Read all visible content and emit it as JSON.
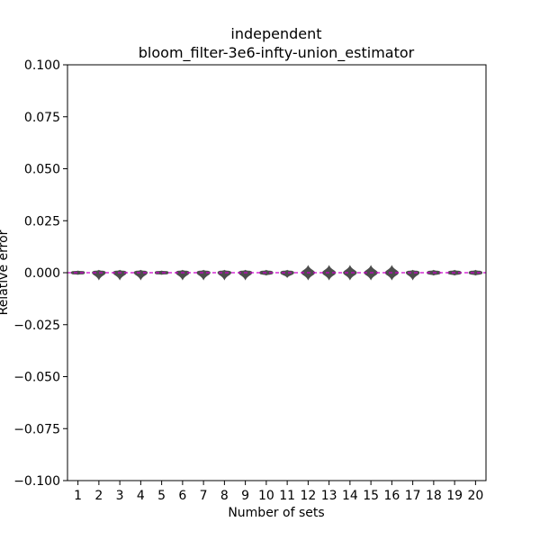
{
  "chart_data": {
    "type": "violin",
    "title_lines": [
      "independent",
      "bloom_filter-3e6-infty-union_estimator"
    ],
    "xlabel": "Number of sets",
    "ylabel": "Relative error",
    "categories": [
      "1",
      "2",
      "3",
      "4",
      "5",
      "6",
      "7",
      "8",
      "9",
      "10",
      "11",
      "12",
      "13",
      "14",
      "15",
      "16",
      "17",
      "18",
      "19",
      "20"
    ],
    "median": [
      0,
      0,
      0,
      0,
      0,
      0,
      0,
      0,
      0,
      0,
      0,
      0,
      0,
      0,
      0,
      0,
      0,
      0,
      0,
      0
    ],
    "min": [
      0,
      -0.003,
      -0.003,
      -0.003,
      0,
      -0.003,
      -0.003,
      -0.003,
      -0.003,
      -0.001,
      -0.002,
      -0.003,
      -0.003,
      -0.003,
      -0.003,
      -0.003,
      -0.003,
      -0.001,
      -0.001,
      -0.001
    ],
    "max": [
      0,
      0.001,
      0.001,
      0.001,
      0,
      0.001,
      0.001,
      0.001,
      0.001,
      0.001,
      0.001,
      0.003,
      0.003,
      0.003,
      0.003,
      0.003,
      0.001,
      0.001,
      0.001,
      0.001
    ],
    "ylim": [
      -0.1,
      0.1
    ],
    "yticks": [
      "0.100",
      "0.075",
      "0.050",
      "0.025",
      "0.000",
      "−0.025",
      "−0.050",
      "−0.075",
      "−0.100"
    ],
    "ytick_values": [
      0.1,
      0.075,
      0.05,
      0.025,
      0,
      -0.025,
      -0.05,
      -0.075,
      -0.1
    ],
    "reference_line": 0,
    "colors": {
      "violin": "#4d4d4d",
      "reference_line": "#cc00cc"
    },
    "grid": false
  }
}
